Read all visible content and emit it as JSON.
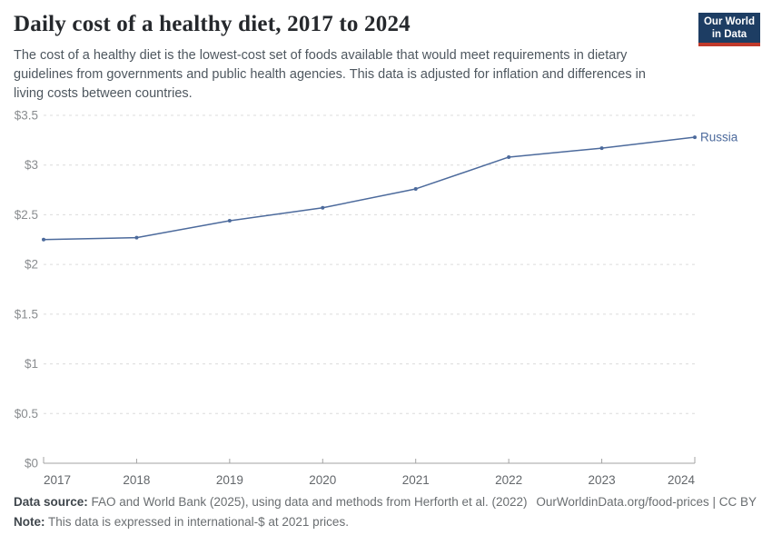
{
  "header": {
    "title": "Daily cost of a healthy diet, 2017 to 2024",
    "subtitle": "The cost of a healthy diet is the lowest-cost set of foods available that would meet requirements in dietary\nguidelines from governments and public health agencies. This data is adjusted for inflation and differences in\nliving costs between countries."
  },
  "logo": {
    "line1": "Our World",
    "line2": "in Data",
    "bg_color": "#1d3d63",
    "accent_color": "#c0392b"
  },
  "chart_data": {
    "type": "line",
    "title": "Daily cost of a healthy diet, 2017 to 2024",
    "x": [
      2017,
      2018,
      2019,
      2020,
      2021,
      2022,
      2023,
      2024
    ],
    "xtick_labels": [
      "2017",
      "2018",
      "2019",
      "2020",
      "2021",
      "2022",
      "2023",
      "2024"
    ],
    "series": [
      {
        "name": "Russia",
        "color": "#4c6a9c",
        "values": [
          2.25,
          2.27,
          2.44,
          2.57,
          2.76,
          3.08,
          3.17,
          3.28
        ]
      }
    ],
    "xlabel": "",
    "ylabel": "",
    "ylim": [
      0,
      3.5
    ],
    "ytick_values": [
      0,
      0.5,
      1,
      1.5,
      2,
      2.5,
      3,
      3.5
    ],
    "ytick_labels": [
      "$0",
      "$0.5",
      "$1",
      "$1.5",
      "$2",
      "$2.5",
      "$3",
      "$3.5"
    ],
    "grid": "horizontal-dashed",
    "legend_position": "end-of-line-label",
    "gridline_color": "#dcdcdc",
    "axis_color": "#a3a3a3"
  },
  "footer": {
    "data_source_label": "Data source:",
    "data_source_text": " FAO and World Bank (2025), using data and methods from Herforth et al. (2022)",
    "note_label": "Note:",
    "note_text": " This data is expressed in international-$ at 2021 prices.",
    "link": "OurWorldinData.org/food-prices | CC BY"
  }
}
